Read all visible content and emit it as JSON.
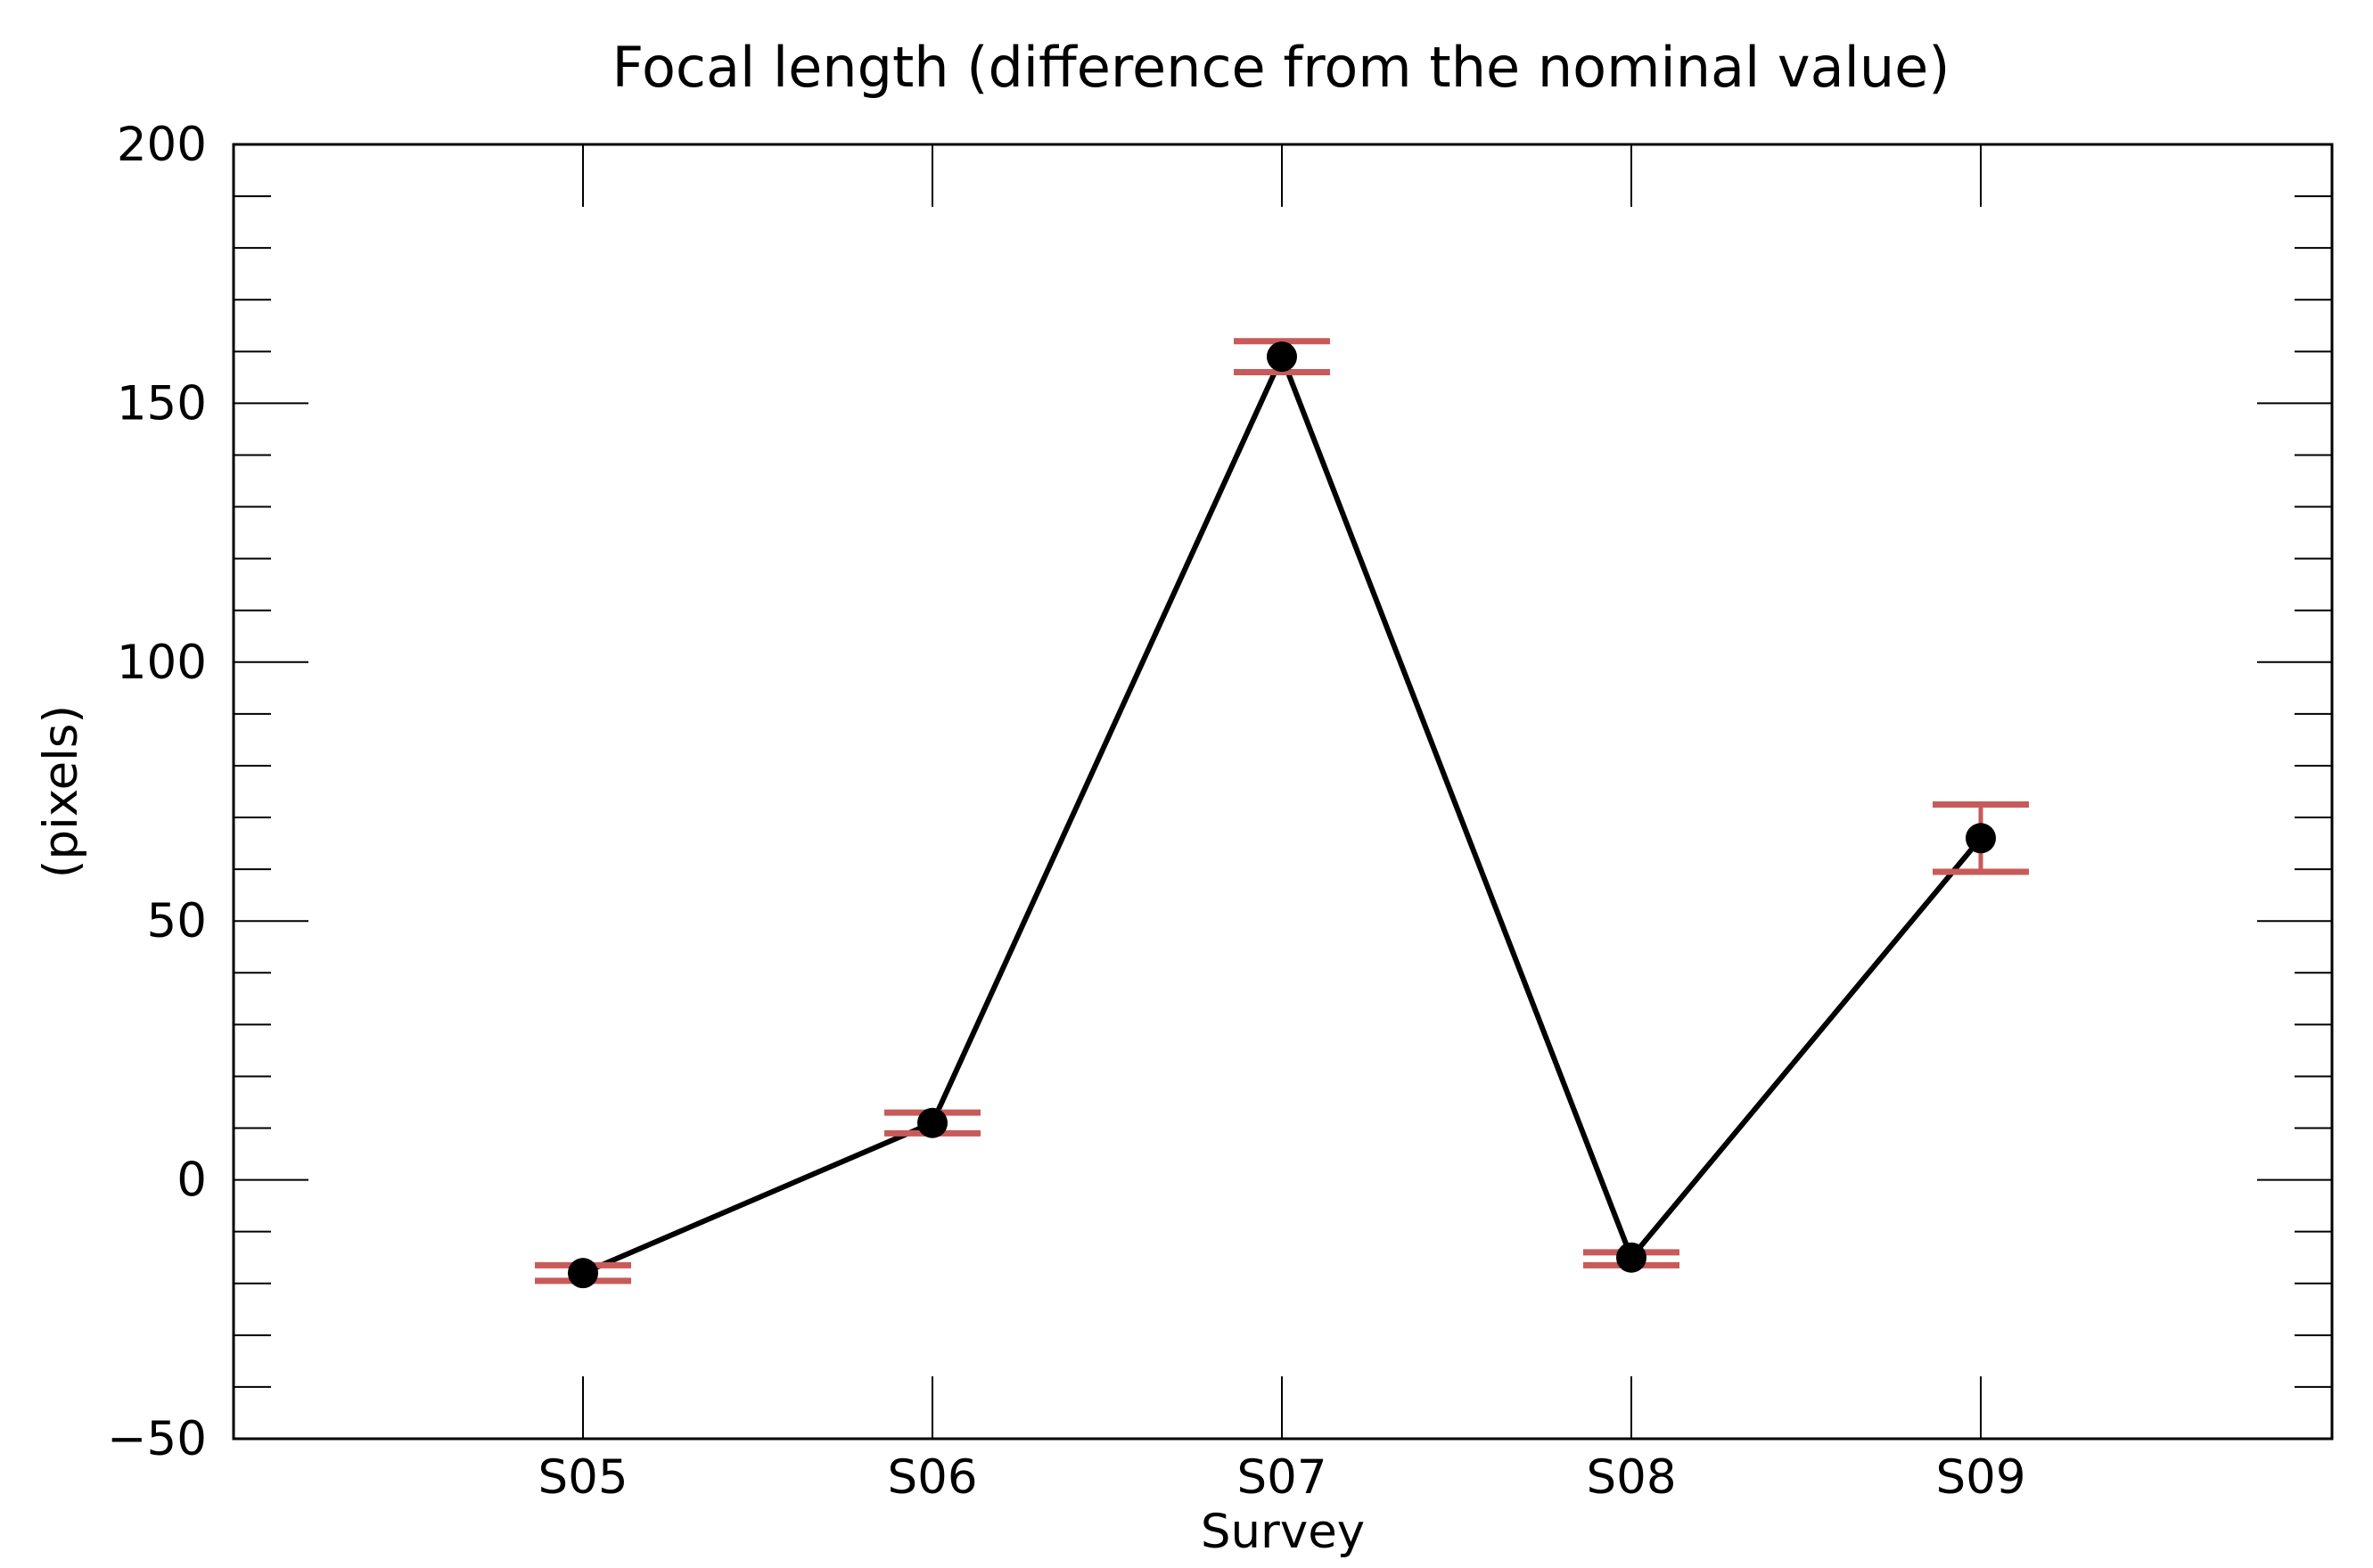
{
  "chart_data": {
    "type": "line",
    "title": "Focal length (difference from the nominal value)",
    "xlabel": "Survey",
    "ylabel": "(pixels)",
    "categories": [
      "S05",
      "S06",
      "S07",
      "S08",
      "S09"
    ],
    "values": [
      -18,
      11,
      159,
      -15,
      66
    ],
    "error_low": [
      -19.5,
      9,
      156,
      -16.5,
      59.5
    ],
    "error_high": [
      -16.5,
      13,
      162,
      -14,
      72.5
    ],
    "ylim": [
      -50,
      200
    ],
    "yticks": [
      -50,
      0,
      50,
      100,
      150,
      200
    ],
    "ytick_labels": [
      "−50",
      "0",
      "50",
      "100",
      "150",
      "200"
    ],
    "yminor_step": 10,
    "grid": false,
    "colors": {
      "line": "#000000",
      "marker": "#000000",
      "errorbar": "#c85a5a"
    }
  }
}
